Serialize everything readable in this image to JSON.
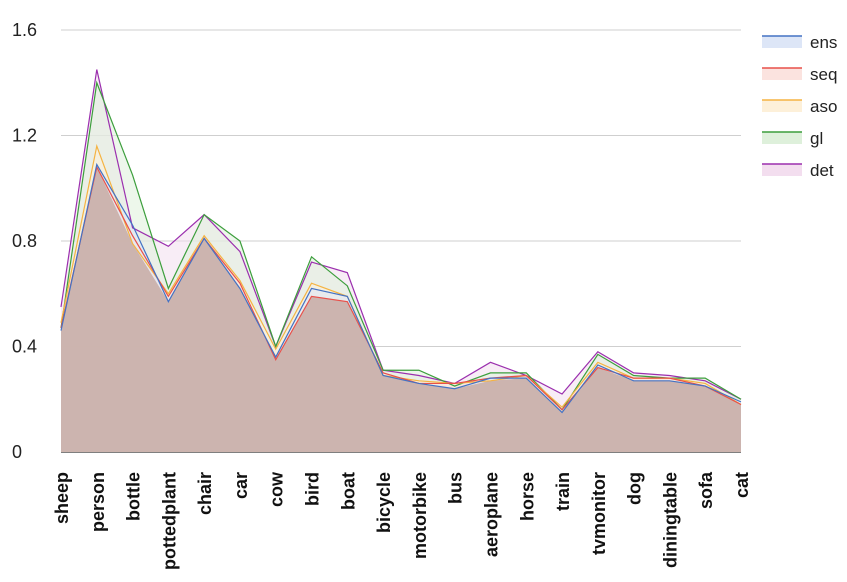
{
  "chart_data": {
    "type": "area",
    "categories": [
      "sheep",
      "person",
      "bottle",
      "pottedplant",
      "chair",
      "car",
      "cow",
      "bird",
      "boat",
      "bicycle",
      "motorbike",
      "bus",
      "aeroplane",
      "horse",
      "train",
      "tvmonitor",
      "dog",
      "diningtable",
      "sofa",
      "cat"
    ],
    "series": [
      {
        "name": "ens",
        "color": "#4472c4",
        "fill": "#dde6f7",
        "values": [
          0.46,
          1.09,
          0.86,
          0.57,
          0.81,
          0.62,
          0.36,
          0.62,
          0.59,
          0.29,
          0.26,
          0.24,
          0.28,
          0.28,
          0.15,
          0.33,
          0.27,
          0.27,
          0.25,
          0.19
        ]
      },
      {
        "name": "seq",
        "color": "#e8504a",
        "fill": "#fbe3df",
        "values": [
          0.47,
          1.08,
          0.82,
          0.59,
          0.81,
          0.64,
          0.35,
          0.59,
          0.57,
          0.3,
          0.26,
          0.26,
          0.28,
          0.29,
          0.16,
          0.32,
          0.28,
          0.28,
          0.25,
          0.18
        ]
      },
      {
        "name": "aso",
        "color": "#f5b342",
        "fill": "#fdf0d9",
        "values": [
          0.49,
          1.16,
          0.79,
          0.6,
          0.82,
          0.65,
          0.39,
          0.64,
          0.59,
          0.29,
          0.27,
          0.26,
          0.27,
          0.29,
          0.17,
          0.34,
          0.28,
          0.28,
          0.26,
          0.18
        ]
      },
      {
        "name": "gl",
        "color": "#3c9e3c",
        "fill": "#def0db",
        "values": [
          0.47,
          1.4,
          1.05,
          0.62,
          0.9,
          0.8,
          0.4,
          0.74,
          0.63,
          0.31,
          0.31,
          0.25,
          0.3,
          0.3,
          0.16,
          0.37,
          0.29,
          0.28,
          0.28,
          0.2
        ]
      },
      {
        "name": "det",
        "color": "#9b2fae",
        "fill": "#f3deef",
        "values": [
          0.55,
          1.45,
          0.85,
          0.78,
          0.9,
          0.76,
          0.4,
          0.72,
          0.68,
          0.31,
          0.29,
          0.26,
          0.34,
          0.29,
          0.22,
          0.38,
          0.3,
          0.29,
          0.27,
          0.2
        ]
      }
    ],
    "ylim": [
      0,
      1.6
    ],
    "yticks": [
      "0",
      "0.4",
      "0.8",
      "1.2",
      "1.6"
    ],
    "ytick_values": [
      0,
      0.4,
      0.8,
      1.2,
      1.6
    ],
    "grid": true,
    "legend_position": "right"
  }
}
